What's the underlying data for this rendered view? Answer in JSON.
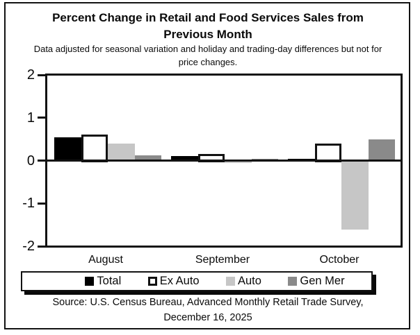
{
  "figure": {
    "title_line1": "Percent Change in Retail and Food Services Sales from",
    "title_line2": "Previous Month",
    "subtitle_line1": "Data adjusted for seasonal variation and holiday and trading-day differences but not for",
    "subtitle_line2": "price changes.",
    "source_line1": "Source: U.S. Census Bureau, Advanced Monthly Retail Trade Survey,",
    "source_line2": "December 16, 2025"
  },
  "chart_data": {
    "type": "bar",
    "title": "Percent Change in Retail and Food Services Sales from Previous Month",
    "subtitle": "Data adjusted for seasonal variation and holiday and trading-day differences but not for price changes.",
    "categories": [
      "August",
      "September",
      "October"
    ],
    "series": [
      {
        "name": "Total",
        "color": "#000000",
        "outline": false,
        "values": [
          0.55,
          0.1,
          0.04
        ]
      },
      {
        "name": "Ex Auto",
        "color": "#ffffff",
        "outline": true,
        "values": [
          0.6,
          0.15,
          0.4
        ]
      },
      {
        "name": "Auto",
        "color": "#c6c6c6",
        "outline": false,
        "values": [
          0.4,
          -0.05,
          -1.6
        ]
      },
      {
        "name": "Gen Mer",
        "color": "#8a8a8a",
        "outline": false,
        "values": [
          0.12,
          0.04,
          0.5
        ]
      }
    ],
    "xlabel": "",
    "ylabel": "",
    "ylim": [
      -2,
      2
    ],
    "yticks": [
      2,
      1,
      0,
      -1,
      -2
    ],
    "grid": false,
    "legend_position": "bottom",
    "axis_color": "#121212",
    "source": "Source: U.S. Census Bureau, Advanced Monthly Retail Trade Survey, December 16, 2025"
  }
}
